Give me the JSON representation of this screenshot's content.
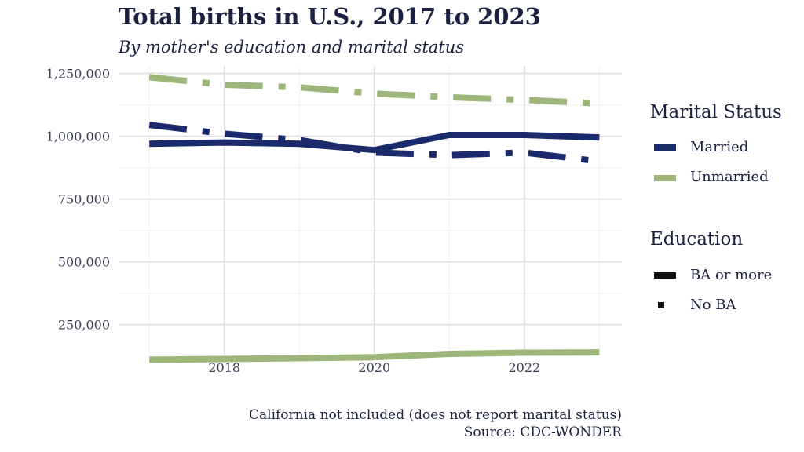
{
  "chart_data": {
    "type": "line",
    "title": "Total births in U.S., 2017 to 2023",
    "subtitle": "By mother's education and marital status",
    "xlabel": "",
    "ylabel": "",
    "x": [
      2017,
      2018,
      2019,
      2020,
      2021,
      2022,
      2023
    ],
    "x_ticks": [
      2018,
      2020,
      2022
    ],
    "x_tick_labels": [
      "2018",
      "2020",
      "2022"
    ],
    "y_ticks": [
      250000,
      500000,
      750000,
      1000000,
      1250000
    ],
    "y_tick_labels": [
      "250,000",
      "500,000",
      "750,000",
      "1,000,000",
      "1,250,000"
    ],
    "xlim": [
      2016.6,
      2023.3
    ],
    "ylim": [
      130000,
      1280000
    ],
    "grid": true,
    "series": [
      {
        "name": "Married, BA or more",
        "marital": "Married",
        "education": "BA or more",
        "color": "#1b2a6b",
        "values": [
          970000,
          975000,
          970000,
          945000,
          1005000,
          1005000,
          995000
        ]
      },
      {
        "name": "Married, No BA",
        "marital": "Married",
        "education": "No BA",
        "color": "#1b2a6b",
        "values": [
          1045000,
          1010000,
          985000,
          935000,
          925000,
          935000,
          900000
        ]
      },
      {
        "name": "Unmarried, BA or more",
        "marital": "Unmarried",
        "education": "BA or more",
        "color": "#9db67a",
        "values": [
          110000,
          113000,
          116000,
          120000,
          133000,
          138000,
          139000
        ]
      },
      {
        "name": "Unmarried, No BA",
        "marital": "Unmarried",
        "education": "No BA",
        "color": "#9db67a",
        "values": [
          1235000,
          1205000,
          1195000,
          1170000,
          1155000,
          1145000,
          1130000
        ]
      }
    ],
    "legend": {
      "position": "right",
      "marital_title": "Marital Status",
      "marital_items": [
        {
          "label": "Married",
          "color": "#1b2a6b"
        },
        {
          "label": "Unmarried",
          "color": "#9db67a"
        }
      ],
      "education_title": "Education",
      "education_items": [
        {
          "label": "BA or more",
          "style": "solid"
        },
        {
          "label": "No BA",
          "style": "dashdot"
        }
      ]
    },
    "caption_line1": "California not included (does not report marital status)",
    "caption_line2": "Source: CDC-WONDER"
  }
}
